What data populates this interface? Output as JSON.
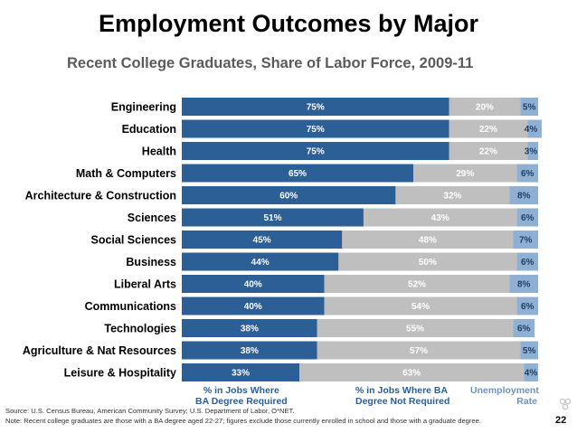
{
  "title": "Employment Outcomes by Major",
  "subtitle": "Recent College Graduates, Share of Labor Force, 2009-11",
  "legend": {
    "ba_required_line1": "% in Jobs Where",
    "ba_required_line2": "BA Degree Required",
    "ba_not_required_line1": "% in Jobs Where BA",
    "ba_not_required_line2": "Degree Not Required",
    "unemployment_line1": "Unemployment",
    "unemployment_line2": "Rate"
  },
  "source_line1": "Source: U.S. Census Bureau, American Community Survey; U.S. Department of Labor, O*NET.",
  "source_line2": "Note: Recent college graduates are those with a BA degree aged 22-27; figures exclude those currently enrolled in school and those with a graduate degree.",
  "page_number": "22",
  "colors": {
    "ba_required": "#2c5f96",
    "ba_not_required": "#bfbfbf",
    "unemployment": "#8fb0d3"
  },
  "chart_data": {
    "type": "bar",
    "orientation": "horizontal-stacked",
    "title": "Employment Outcomes by Major",
    "subtitle": "Recent College Graduates, Share of Labor Force, 2009-11",
    "xlim": [
      0,
      100
    ],
    "categories": [
      "Engineering",
      "Education",
      "Health",
      "Math & Computers",
      "Architecture & Construction",
      "Sciences",
      "Social Sciences",
      "Business",
      "Liberal Arts",
      "Communications",
      "Technologies",
      "Agriculture & Nat Resources",
      "Leisure & Hospitality"
    ],
    "series": [
      {
        "name": "% in Jobs Where BA Degree Required",
        "values": [
          75,
          75,
          75,
          65,
          60,
          51,
          45,
          44,
          40,
          40,
          38,
          38,
          33
        ]
      },
      {
        "name": "% in Jobs Where BA Degree Not Required",
        "values": [
          20,
          22,
          22,
          29,
          32,
          43,
          48,
          50,
          52,
          54,
          55,
          57,
          63
        ]
      },
      {
        "name": "Unemployment Rate",
        "values": [
          5,
          4,
          3,
          6,
          8,
          6,
          7,
          6,
          8,
          6,
          6,
          5,
          4
        ]
      }
    ],
    "value_suffix": "%"
  }
}
